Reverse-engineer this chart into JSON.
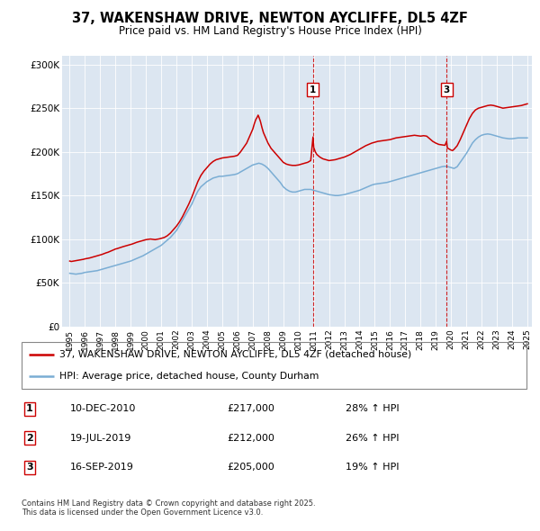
{
  "title": "37, WAKENSHAW DRIVE, NEWTON AYCLIFFE, DL5 4ZF",
  "subtitle": "Price paid vs. HM Land Registry's House Price Index (HPI)",
  "legend_line1": "37, WAKENSHAW DRIVE, NEWTON AYCLIFFE, DL5 4ZF (detached house)",
  "legend_line2": "HPI: Average price, detached house, County Durham",
  "footer": "Contains HM Land Registry data © Crown copyright and database right 2025.\nThis data is licensed under the Open Government Licence v3.0.",
  "sale_color": "#cc0000",
  "hpi_color": "#7aadd4",
  "background_color": "#dce6f1",
  "ylim": [
    0,
    310000
  ],
  "yticks": [
    0,
    50000,
    100000,
    150000,
    200000,
    250000,
    300000
  ],
  "ytick_labels": [
    "£0",
    "£50K",
    "£100K",
    "£150K",
    "£200K",
    "£250K",
    "£300K"
  ],
  "xmin_year": 1995,
  "xmax_year": 2025,
  "xticks": [
    1995,
    1996,
    1997,
    1998,
    1999,
    2000,
    2001,
    2002,
    2003,
    2004,
    2005,
    2006,
    2007,
    2008,
    2009,
    2010,
    2011,
    2012,
    2013,
    2014,
    2015,
    2016,
    2017,
    2018,
    2019,
    2020,
    2021,
    2022,
    2023,
    2024,
    2025
  ],
  "ann1_x": 2010.95,
  "ann3_x": 2019.71,
  "hpi_data": [
    [
      1995.0,
      61000
    ],
    [
      1995.2,
      60500
    ],
    [
      1995.4,
      60000
    ],
    [
      1995.6,
      60500
    ],
    [
      1995.8,
      61000
    ],
    [
      1996.0,
      62000
    ],
    [
      1996.2,
      62500
    ],
    [
      1996.4,
      63000
    ],
    [
      1996.6,
      63500
    ],
    [
      1996.8,
      64000
    ],
    [
      1997.0,
      65000
    ],
    [
      1997.2,
      66000
    ],
    [
      1997.4,
      67000
    ],
    [
      1997.6,
      68000
    ],
    [
      1997.8,
      69000
    ],
    [
      1998.0,
      70000
    ],
    [
      1998.2,
      71000
    ],
    [
      1998.4,
      72000
    ],
    [
      1998.6,
      73000
    ],
    [
      1998.8,
      74000
    ],
    [
      1999.0,
      75000
    ],
    [
      1999.2,
      76500
    ],
    [
      1999.4,
      78000
    ],
    [
      1999.6,
      79500
    ],
    [
      1999.8,
      81000
    ],
    [
      2000.0,
      83000
    ],
    [
      2000.2,
      85000
    ],
    [
      2000.4,
      87000
    ],
    [
      2000.6,
      89000
    ],
    [
      2000.8,
      91000
    ],
    [
      2001.0,
      93000
    ],
    [
      2001.2,
      96000
    ],
    [
      2001.4,
      99000
    ],
    [
      2001.6,
      102000
    ],
    [
      2001.8,
      106000
    ],
    [
      2002.0,
      110000
    ],
    [
      2002.2,
      116000
    ],
    [
      2002.4,
      122000
    ],
    [
      2002.6,
      128000
    ],
    [
      2002.8,
      134000
    ],
    [
      2003.0,
      140000
    ],
    [
      2003.2,
      148000
    ],
    [
      2003.4,
      155000
    ],
    [
      2003.6,
      160000
    ],
    [
      2003.8,
      163000
    ],
    [
      2004.0,
      166000
    ],
    [
      2004.2,
      168000
    ],
    [
      2004.4,
      170000
    ],
    [
      2004.6,
      171000
    ],
    [
      2004.8,
      172000
    ],
    [
      2005.0,
      172000
    ],
    [
      2005.2,
      172500
    ],
    [
      2005.4,
      173000
    ],
    [
      2005.6,
      173500
    ],
    [
      2005.8,
      174000
    ],
    [
      2006.0,
      175000
    ],
    [
      2006.2,
      177000
    ],
    [
      2006.4,
      179000
    ],
    [
      2006.6,
      181000
    ],
    [
      2006.8,
      183000
    ],
    [
      2007.0,
      185000
    ],
    [
      2007.2,
      186000
    ],
    [
      2007.4,
      187000
    ],
    [
      2007.6,
      186000
    ],
    [
      2007.8,
      184000
    ],
    [
      2008.0,
      181000
    ],
    [
      2008.2,
      177000
    ],
    [
      2008.4,
      173000
    ],
    [
      2008.6,
      169000
    ],
    [
      2008.8,
      165000
    ],
    [
      2009.0,
      160000
    ],
    [
      2009.2,
      157000
    ],
    [
      2009.4,
      155000
    ],
    [
      2009.6,
      154000
    ],
    [
      2009.8,
      154000
    ],
    [
      2010.0,
      155000
    ],
    [
      2010.2,
      156000
    ],
    [
      2010.4,
      157000
    ],
    [
      2010.6,
      157000
    ],
    [
      2010.8,
      157000
    ],
    [
      2011.0,
      156000
    ],
    [
      2011.2,
      155000
    ],
    [
      2011.4,
      154000
    ],
    [
      2011.6,
      153000
    ],
    [
      2011.8,
      152000
    ],
    [
      2012.0,
      151000
    ],
    [
      2012.2,
      150500
    ],
    [
      2012.4,
      150000
    ],
    [
      2012.6,
      150000
    ],
    [
      2012.8,
      150500
    ],
    [
      2013.0,
      151000
    ],
    [
      2013.2,
      152000
    ],
    [
      2013.4,
      153000
    ],
    [
      2013.6,
      154000
    ],
    [
      2013.8,
      155000
    ],
    [
      2014.0,
      156000
    ],
    [
      2014.2,
      157500
    ],
    [
      2014.4,
      159000
    ],
    [
      2014.6,
      160500
    ],
    [
      2014.8,
      162000
    ],
    [
      2015.0,
      163000
    ],
    [
      2015.2,
      163500
    ],
    [
      2015.4,
      164000
    ],
    [
      2015.6,
      164500
    ],
    [
      2015.8,
      165000
    ],
    [
      2016.0,
      166000
    ],
    [
      2016.2,
      167000
    ],
    [
      2016.4,
      168000
    ],
    [
      2016.6,
      169000
    ],
    [
      2016.8,
      170000
    ],
    [
      2017.0,
      171000
    ],
    [
      2017.2,
      172000
    ],
    [
      2017.4,
      173000
    ],
    [
      2017.6,
      174000
    ],
    [
      2017.8,
      175000
    ],
    [
      2018.0,
      176000
    ],
    [
      2018.2,
      177000
    ],
    [
      2018.4,
      178000
    ],
    [
      2018.6,
      179000
    ],
    [
      2018.8,
      180000
    ],
    [
      2019.0,
      181000
    ],
    [
      2019.2,
      182000
    ],
    [
      2019.4,
      183000
    ],
    [
      2019.6,
      183500
    ],
    [
      2019.8,
      183000
    ],
    [
      2020.0,
      182000
    ],
    [
      2020.2,
      181000
    ],
    [
      2020.4,
      183000
    ],
    [
      2020.6,
      188000
    ],
    [
      2020.8,
      193000
    ],
    [
      2021.0,
      198000
    ],
    [
      2021.2,
      204000
    ],
    [
      2021.4,
      210000
    ],
    [
      2021.6,
      214000
    ],
    [
      2021.8,
      217000
    ],
    [
      2022.0,
      219000
    ],
    [
      2022.2,
      220000
    ],
    [
      2022.4,
      220500
    ],
    [
      2022.6,
      220000
    ],
    [
      2022.8,
      219000
    ],
    [
      2023.0,
      218000
    ],
    [
      2023.2,
      217000
    ],
    [
      2023.4,
      216000
    ],
    [
      2023.6,
      215500
    ],
    [
      2023.8,
      215000
    ],
    [
      2024.0,
      215000
    ],
    [
      2024.2,
      215500
    ],
    [
      2024.4,
      216000
    ],
    [
      2024.6,
      216000
    ],
    [
      2024.8,
      216000
    ],
    [
      2025.0,
      216000
    ]
  ],
  "sale_data": [
    [
      1995.0,
      75000
    ],
    [
      1995.1,
      74500
    ],
    [
      1995.2,
      74800
    ],
    [
      1995.3,
      75200
    ],
    [
      1995.4,
      75500
    ],
    [
      1995.5,
      75800
    ],
    [
      1995.6,
      76000
    ],
    [
      1995.7,
      76200
    ],
    [
      1995.8,
      76500
    ],
    [
      1995.9,
      77000
    ],
    [
      1996.0,
      77500
    ],
    [
      1996.1,
      77800
    ],
    [
      1996.2,
      78200
    ],
    [
      1996.3,
      78500
    ],
    [
      1996.4,
      79000
    ],
    [
      1996.5,
      79500
    ],
    [
      1996.6,
      80000
    ],
    [
      1996.7,
      80500
    ],
    [
      1996.8,
      81000
    ],
    [
      1996.9,
      81500
    ],
    [
      1997.0,
      82000
    ],
    [
      1997.1,
      82500
    ],
    [
      1997.2,
      83200
    ],
    [
      1997.3,
      83800
    ],
    [
      1997.4,
      84500
    ],
    [
      1997.5,
      85000
    ],
    [
      1997.6,
      85800
    ],
    [
      1997.7,
      86500
    ],
    [
      1997.8,
      87200
    ],
    [
      1997.9,
      88000
    ],
    [
      1998.0,
      88800
    ],
    [
      1998.1,
      89200
    ],
    [
      1998.2,
      89800
    ],
    [
      1998.3,
      90500
    ],
    [
      1998.4,
      91000
    ],
    [
      1998.5,
      91500
    ],
    [
      1998.6,
      92000
    ],
    [
      1998.7,
      92500
    ],
    [
      1998.8,
      93000
    ],
    [
      1998.9,
      93500
    ],
    [
      1999.0,
      94000
    ],
    [
      1999.1,
      94500
    ],
    [
      1999.2,
      95200
    ],
    [
      1999.3,
      95800
    ],
    [
      1999.4,
      96500
    ],
    [
      1999.5,
      97000
    ],
    [
      1999.6,
      97500
    ],
    [
      1999.7,
      98000
    ],
    [
      1999.8,
      98500
    ],
    [
      1999.9,
      99000
    ],
    [
      2000.0,
      99500
    ],
    [
      2000.1,
      99800
    ],
    [
      2000.2,
      100000
    ],
    [
      2000.3,
      100200
    ],
    [
      2000.4,
      100000
    ],
    [
      2000.5,
      99800
    ],
    [
      2000.6,
      99500
    ],
    [
      2000.7,
      99800
    ],
    [
      2000.8,
      100000
    ],
    [
      2000.9,
      100500
    ],
    [
      2001.0,
      101000
    ],
    [
      2001.1,
      101500
    ],
    [
      2001.2,
      102000
    ],
    [
      2001.3,
      103000
    ],
    [
      2001.4,
      104000
    ],
    [
      2001.5,
      105500
    ],
    [
      2001.6,
      107000
    ],
    [
      2001.7,
      109000
    ],
    [
      2001.8,
      111000
    ],
    [
      2001.9,
      113000
    ],
    [
      2002.0,
      115000
    ],
    [
      2002.2,
      120000
    ],
    [
      2002.4,
      126000
    ],
    [
      2002.6,
      133000
    ],
    [
      2002.8,
      140000
    ],
    [
      2003.0,
      148000
    ],
    [
      2003.2,
      157000
    ],
    [
      2003.4,
      166000
    ],
    [
      2003.6,
      173000
    ],
    [
      2003.8,
      178000
    ],
    [
      2004.0,
      182000
    ],
    [
      2004.2,
      186000
    ],
    [
      2004.4,
      189000
    ],
    [
      2004.6,
      191000
    ],
    [
      2004.8,
      192000
    ],
    [
      2005.0,
      193000
    ],
    [
      2005.2,
      193500
    ],
    [
      2005.4,
      194000
    ],
    [
      2005.6,
      194500
    ],
    [
      2005.8,
      195000
    ],
    [
      2006.0,
      196000
    ],
    [
      2006.2,
      200000
    ],
    [
      2006.4,
      205000
    ],
    [
      2006.6,
      210000
    ],
    [
      2006.8,
      218000
    ],
    [
      2007.0,
      226000
    ],
    [
      2007.1,
      232000
    ],
    [
      2007.2,
      237000
    ],
    [
      2007.3,
      240000
    ],
    [
      2007.35,
      242000
    ],
    [
      2007.4,
      240000
    ],
    [
      2007.5,
      235000
    ],
    [
      2007.6,
      228000
    ],
    [
      2007.7,
      222000
    ],
    [
      2007.8,
      218000
    ],
    [
      2007.9,
      214000
    ],
    [
      2008.0,
      210000
    ],
    [
      2008.2,
      204000
    ],
    [
      2008.4,
      200000
    ],
    [
      2008.6,
      196000
    ],
    [
      2008.8,
      192000
    ],
    [
      2009.0,
      188000
    ],
    [
      2009.2,
      186000
    ],
    [
      2009.4,
      185000
    ],
    [
      2009.6,
      184500
    ],
    [
      2009.8,
      184500
    ],
    [
      2010.0,
      185000
    ],
    [
      2010.2,
      186000
    ],
    [
      2010.4,
      187000
    ],
    [
      2010.6,
      188000
    ],
    [
      2010.8,
      190000
    ],
    [
      2010.95,
      217000
    ],
    [
      2011.0,
      205000
    ],
    [
      2011.1,
      200000
    ],
    [
      2011.2,
      197000
    ],
    [
      2011.4,
      194000
    ],
    [
      2011.6,
      192000
    ],
    [
      2011.8,
      191000
    ],
    [
      2012.0,
      190000
    ],
    [
      2012.2,
      190500
    ],
    [
      2012.4,
      191000
    ],
    [
      2012.6,
      192000
    ],
    [
      2012.8,
      193000
    ],
    [
      2013.0,
      194000
    ],
    [
      2013.2,
      195500
    ],
    [
      2013.4,
      197000
    ],
    [
      2013.6,
      199000
    ],
    [
      2013.8,
      201000
    ],
    [
      2014.0,
      203000
    ],
    [
      2014.2,
      205000
    ],
    [
      2014.4,
      207000
    ],
    [
      2014.6,
      208500
    ],
    [
      2014.8,
      210000
    ],
    [
      2015.0,
      211000
    ],
    [
      2015.2,
      212000
    ],
    [
      2015.4,
      212500
    ],
    [
      2015.6,
      213000
    ],
    [
      2015.8,
      213500
    ],
    [
      2016.0,
      214000
    ],
    [
      2016.2,
      215000
    ],
    [
      2016.4,
      216000
    ],
    [
      2016.6,
      216500
    ],
    [
      2016.8,
      217000
    ],
    [
      2017.0,
      217500
    ],
    [
      2017.2,
      218000
    ],
    [
      2017.4,
      218500
    ],
    [
      2017.6,
      219000
    ],
    [
      2017.8,
      218500
    ],
    [
      2018.0,
      218000
    ],
    [
      2018.2,
      218500
    ],
    [
      2018.4,
      218000
    ],
    [
      2018.6,
      215000
    ],
    [
      2018.8,
      212000
    ],
    [
      2019.0,
      210000
    ],
    [
      2019.2,
      208500
    ],
    [
      2019.4,
      208000
    ],
    [
      2019.6,
      207500
    ],
    [
      2019.71,
      212000
    ],
    [
      2019.75,
      205000
    ],
    [
      2019.8,
      204000
    ],
    [
      2019.9,
      203000
    ],
    [
      2020.0,
      202000
    ],
    [
      2020.1,
      201500
    ],
    [
      2020.2,
      203000
    ],
    [
      2020.4,
      207000
    ],
    [
      2020.6,
      214000
    ],
    [
      2020.8,
      222000
    ],
    [
      2021.0,
      230000
    ],
    [
      2021.2,
      238000
    ],
    [
      2021.4,
      244000
    ],
    [
      2021.6,
      248000
    ],
    [
      2021.8,
      250000
    ],
    [
      2022.0,
      251000
    ],
    [
      2022.2,
      252000
    ],
    [
      2022.4,
      253000
    ],
    [
      2022.6,
      253500
    ],
    [
      2022.8,
      253000
    ],
    [
      2023.0,
      252000
    ],
    [
      2023.2,
      251000
    ],
    [
      2023.4,
      250000
    ],
    [
      2023.6,
      250500
    ],
    [
      2023.8,
      251000
    ],
    [
      2024.0,
      251500
    ],
    [
      2024.2,
      252000
    ],
    [
      2024.4,
      252500
    ],
    [
      2024.6,
      253000
    ],
    [
      2024.8,
      254000
    ],
    [
      2025.0,
      255000
    ]
  ],
  "table_rows": [
    {
      "num": "1",
      "date": "10-DEC-2010",
      "price": "£217,000",
      "pct": "28% ↑ HPI"
    },
    {
      "num": "2",
      "date": "19-JUL-2019",
      "price": "£212,000",
      "pct": "26% ↑ HPI"
    },
    {
      "num": "3",
      "date": "16-SEP-2019",
      "price": "£205,000",
      "pct": "19% ↑ HPI"
    }
  ]
}
